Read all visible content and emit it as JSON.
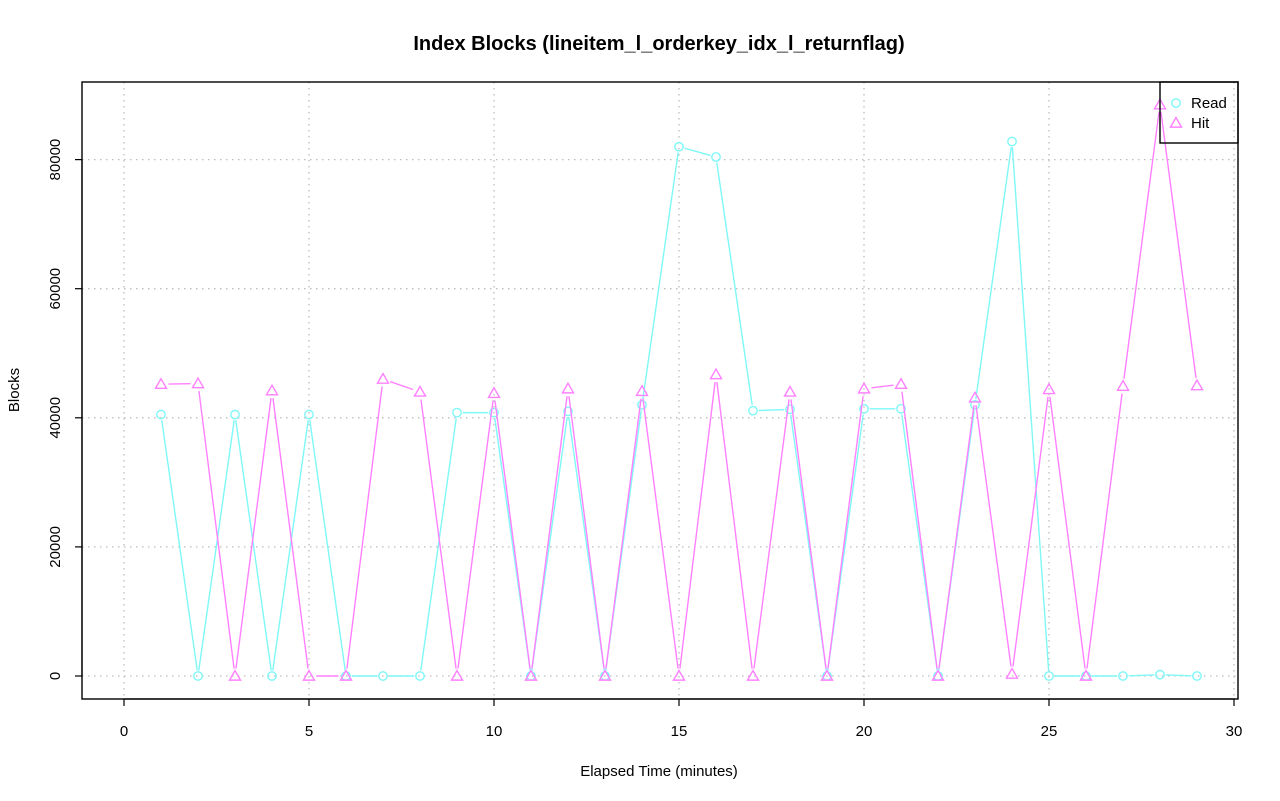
{
  "chart_data": {
    "type": "line",
    "title": "Index Blocks (lineitem_l_orderkey_idx_l_returnflag)",
    "xlabel": "Elapsed Time (minutes)",
    "ylabel": "Blocks",
    "xlim": [
      0,
      30
    ],
    "ylim": [
      0,
      88000
    ],
    "x_ticks": [
      0,
      5,
      10,
      15,
      20,
      25,
      30
    ],
    "y_ticks": [
      0,
      20000,
      40000,
      60000,
      80000
    ],
    "grid": true,
    "legend_position": "top-right",
    "x": [
      1,
      2,
      3,
      4,
      5,
      6,
      7,
      8,
      9,
      10,
      11,
      12,
      13,
      14,
      15,
      16,
      17,
      18,
      19,
      20,
      21,
      22,
      23,
      24,
      25,
      26,
      27,
      28,
      29
    ],
    "series": [
      {
        "name": "Read",
        "color": "#7ff7f7",
        "marker": "circle",
        "values": [
          40500,
          0,
          40500,
          0,
          40500,
          0,
          0,
          0,
          40800,
          40800,
          0,
          41000,
          0,
          42000,
          82000,
          80400,
          41100,
          41300,
          0,
          41400,
          41400,
          0,
          42000,
          82800,
          0,
          0,
          0,
          200,
          0
        ]
      },
      {
        "name": "Hit",
        "color": "#ff80ff",
        "marker": "triangle",
        "values": [
          45200,
          45300,
          0,
          44200,
          0,
          0,
          46000,
          44000,
          0,
          43800,
          0,
          44500,
          0,
          44100,
          0,
          46700,
          0,
          44000,
          0,
          44500,
          45200,
          0,
          43100,
          300,
          44400,
          0,
          44900,
          88500,
          45000
        ]
      }
    ]
  }
}
